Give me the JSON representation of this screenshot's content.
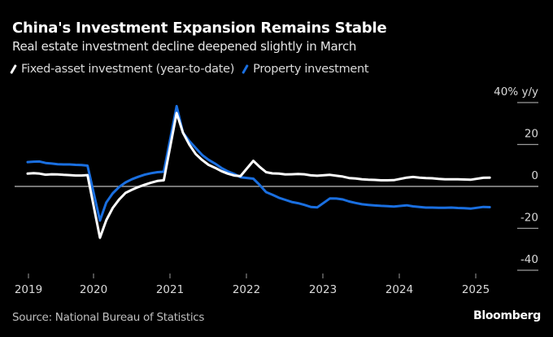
{
  "header": {
    "title": "China's Investment Expansion Remains Stable",
    "subtitle": "Real estate investment decline deepened slightly in March"
  },
  "legend": [
    {
      "label": "Fixed-asset investment (year-to-date)",
      "color": "#ffffff"
    },
    {
      "label": "Property investment",
      "color": "#1a6fe0"
    }
  ],
  "footer": {
    "source": "Source: National Bureau of Statistics",
    "brand": "Bloomberg"
  },
  "chart_data": {
    "type": "line",
    "title": "China's Investment Expansion Remains Stable",
    "subtitle": "Real estate investment decline deepened slightly in March",
    "xlabel": "",
    "ylabel": "% y/y",
    "ylim": [
      -40,
      40
    ],
    "yticks": [
      40,
      20,
      0,
      -20,
      -40
    ],
    "ytick_labels": [
      "40% y/y",
      "20",
      "0",
      "-20",
      "-40"
    ],
    "xticks": [
      "2019",
      "2020",
      "2021",
      "2022",
      "2023",
      "2024",
      "2025"
    ],
    "grid": true,
    "legend_position": "top-left",
    "x": [
      "2019-02",
      "2019-03",
      "2019-04",
      "2019-05",
      "2019-06",
      "2019-07",
      "2019-08",
      "2019-09",
      "2019-10",
      "2019-11",
      "2019-12",
      "2020-02",
      "2020-03",
      "2020-04",
      "2020-05",
      "2020-06",
      "2020-07",
      "2020-08",
      "2020-09",
      "2020-10",
      "2020-11",
      "2020-12",
      "2021-02",
      "2021-03",
      "2021-04",
      "2021-05",
      "2021-06",
      "2021-07",
      "2021-08",
      "2021-09",
      "2021-10",
      "2021-11",
      "2021-12",
      "2022-02",
      "2022-03",
      "2022-04",
      "2022-05",
      "2022-06",
      "2022-07",
      "2022-08",
      "2022-09",
      "2022-10",
      "2022-11",
      "2022-12",
      "2023-02",
      "2023-03",
      "2023-04",
      "2023-05",
      "2023-06",
      "2023-07",
      "2023-08",
      "2023-09",
      "2023-10",
      "2023-11",
      "2023-12",
      "2024-02",
      "2024-03",
      "2024-04",
      "2024-05",
      "2024-06",
      "2024-07",
      "2024-08",
      "2024-09",
      "2024-10",
      "2024-11",
      "2024-12",
      "2025-02",
      "2025-03"
    ],
    "series": [
      {
        "name": "Fixed-asset investment (year-to-date)",
        "color": "#ffffff",
        "values": [
          6.1,
          6.3,
          6.1,
          5.6,
          5.8,
          5.7,
          5.5,
          5.4,
          5.2,
          5.2,
          5.4,
          -24.5,
          -16.1,
          -10.3,
          -6.3,
          -3.1,
          -1.6,
          -0.3,
          0.8,
          1.8,
          2.6,
          2.9,
          35.0,
          25.6,
          19.9,
          15.4,
          12.6,
          10.3,
          8.9,
          7.3,
          6.1,
          5.2,
          4.9,
          12.2,
          9.3,
          6.8,
          6.2,
          6.1,
          5.7,
          5.8,
          5.9,
          5.8,
          5.3,
          5.1,
          5.5,
          5.1,
          4.7,
          4.0,
          3.8,
          3.4,
          3.2,
          3.1,
          2.9,
          2.9,
          3.0,
          4.2,
          4.5,
          4.2,
          4.0,
          3.9,
          3.6,
          3.4,
          3.4,
          3.4,
          3.3,
          3.2,
          4.1,
          4.2
        ]
      },
      {
        "name": "Property investment",
        "color": "#1a6fe0",
        "values": [
          11.6,
          11.8,
          11.9,
          11.2,
          10.9,
          10.6,
          10.5,
          10.5,
          10.3,
          10.2,
          9.9,
          -16.3,
          -7.7,
          -3.3,
          -0.3,
          1.9,
          3.4,
          4.6,
          5.6,
          6.3,
          6.8,
          7.0,
          38.3,
          25.6,
          21.6,
          18.3,
          15.0,
          12.7,
          10.9,
          8.8,
          7.2,
          6.0,
          4.4,
          3.7,
          0.7,
          -2.7,
          -4.0,
          -5.4,
          -6.4,
          -7.4,
          -8.0,
          -8.8,
          -9.8,
          -10.0,
          -5.7,
          -5.8,
          -6.2,
          -7.2,
          -7.9,
          -8.5,
          -8.8,
          -9.1,
          -9.3,
          -9.4,
          -9.6,
          -9.0,
          -9.5,
          -9.8,
          -10.1,
          -10.1,
          -10.2,
          -10.2,
          -10.1,
          -10.3,
          -10.4,
          -10.6,
          -9.8,
          -9.9
        ]
      }
    ]
  }
}
